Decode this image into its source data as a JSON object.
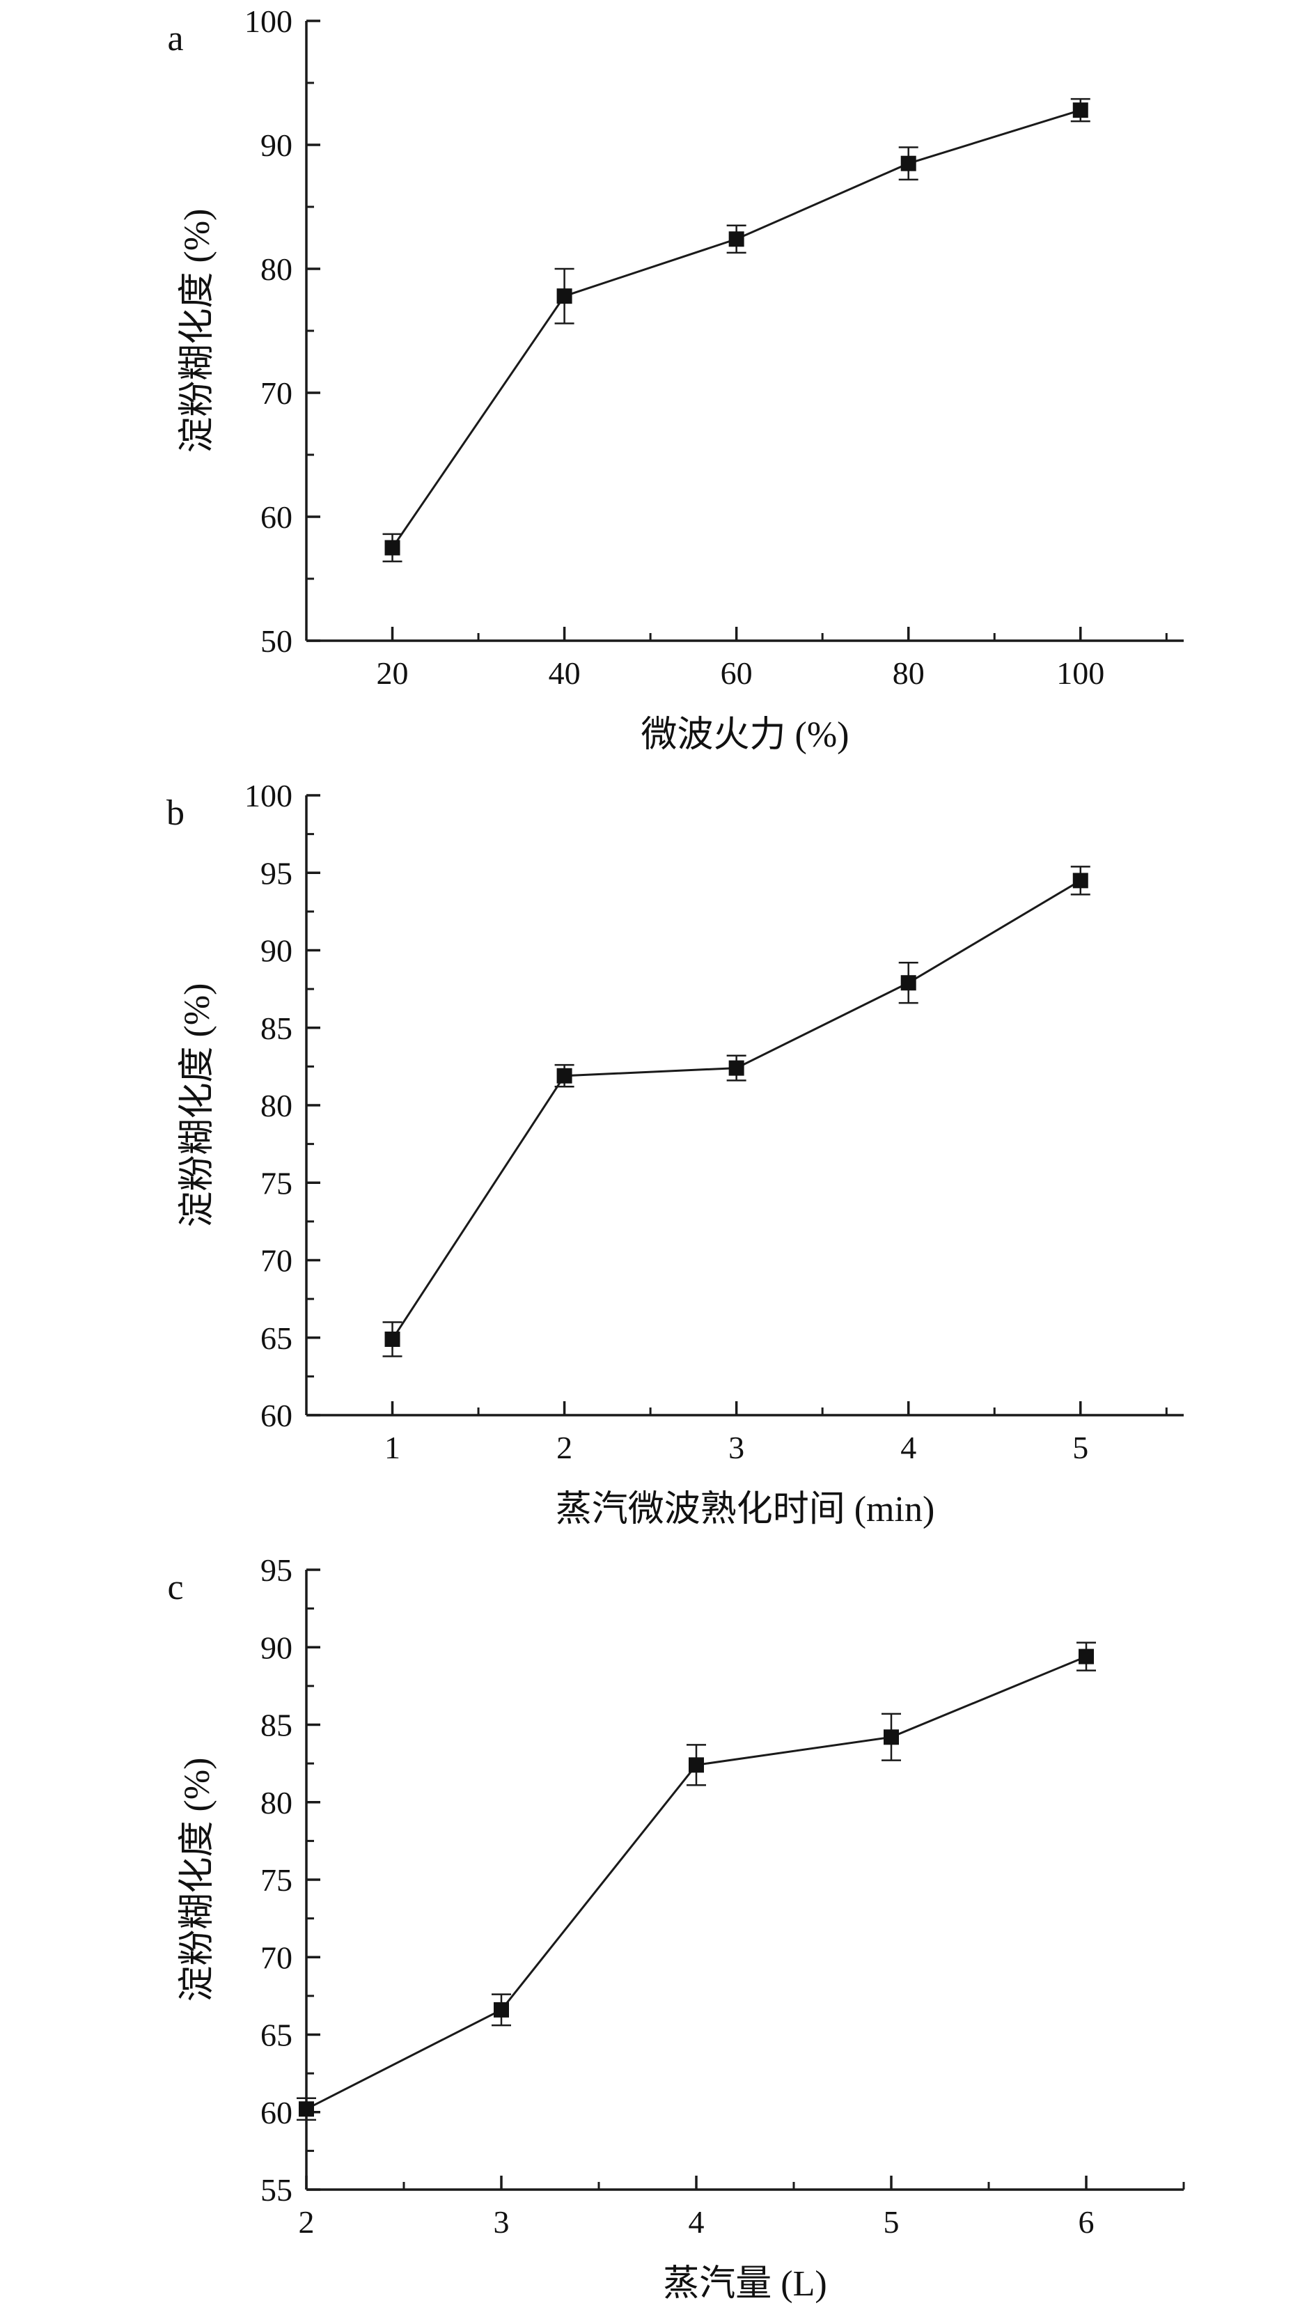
{
  "page": {
    "background": "#ffffff",
    "text_color": "#111111",
    "accent_color": "#1a1a1a"
  },
  "chart_data": [
    {
      "type": "line",
      "panel_label": "a",
      "title": "",
      "xlabel": "微波火力 (%)",
      "ylabel": "淀粉糊化度 (%)",
      "x": [
        20,
        40,
        60,
        80,
        100
      ],
      "values": [
        57.5,
        77.8,
        82.4,
        88.5,
        92.8
      ],
      "errors": [
        1.1,
        2.2,
        1.1,
        1.3,
        0.9
      ],
      "xlim": [
        10,
        112
      ],
      "ylim": [
        50,
        100
      ],
      "xticks": [
        20,
        40,
        60,
        80,
        100
      ],
      "yticks": [
        50,
        60,
        70,
        80,
        90,
        100
      ],
      "x_minor_step": 10,
      "y_minor_step": 5,
      "marker": "square",
      "line_color": "#1a1a1a",
      "grid": false,
      "legend": "none"
    },
    {
      "type": "line",
      "panel_label": "b",
      "title": "",
      "xlabel": "蒸汽微波熟化时间 (min)",
      "ylabel": "淀粉糊化度 (%)",
      "x": [
        1,
        2,
        3,
        4,
        5
      ],
      "values": [
        64.9,
        81.9,
        82.4,
        87.9,
        94.5
      ],
      "errors": [
        1.1,
        0.7,
        0.8,
        1.3,
        0.9
      ],
      "xlim": [
        0.5,
        5.6
      ],
      "ylim": [
        60,
        100
      ],
      "xticks": [
        1,
        2,
        3,
        4,
        5
      ],
      "yticks": [
        60,
        65,
        70,
        75,
        80,
        85,
        90,
        95,
        100
      ],
      "x_minor_step": 0.5,
      "y_minor_step": 2.5,
      "marker": "square",
      "line_color": "#1a1a1a",
      "grid": false,
      "legend": "none"
    },
    {
      "type": "line",
      "panel_label": "c",
      "title": "",
      "xlabel": "蒸汽量 (L)",
      "ylabel": "淀粉糊化度 (%)",
      "x": [
        2,
        3,
        4,
        5,
        6
      ],
      "values": [
        60.2,
        66.6,
        82.4,
        84.2,
        89.4
      ],
      "errors": [
        0.7,
        1.0,
        1.3,
        1.5,
        0.9
      ],
      "xlim": [
        2,
        6.5
      ],
      "ylim": [
        55,
        95
      ],
      "xticks": [
        2,
        3,
        4,
        5,
        6
      ],
      "yticks": [
        55,
        60,
        65,
        70,
        75,
        80,
        85,
        90,
        95
      ],
      "x_minor_step": 0.5,
      "y_minor_step": 2.5,
      "marker": "square",
      "line_color": "#1a1a1a",
      "grid": false,
      "legend": "none"
    }
  ]
}
